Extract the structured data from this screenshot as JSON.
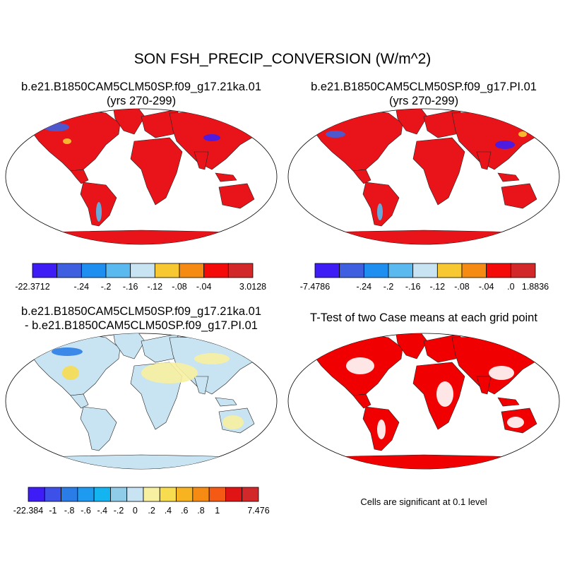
{
  "figure": {
    "title": "SON FSH_PRECIP_CONVERSION (W/m^2)",
    "significance_note": "Cells are significant at 0.1 level"
  },
  "panels": [
    {
      "id": "case1",
      "title_lines": [
        "b.e21.B1850CAM5CLM50SP.f09_g17.21ka.01",
        "(yrs 270-299)"
      ],
      "dominant_color": "#e8141a",
      "colorbar": {
        "labels": [
          "-22.3712",
          "-.24",
          "-.2",
          "-.16",
          "-.12",
          "-.08",
          "-.04",
          "3.0128"
        ],
        "colors": [
          "#3d1cf5",
          "#3d5fe0",
          "#1e8ef0",
          "#5ab9ee",
          "#c8e4f2",
          "#f7c832",
          "#f68b14",
          "#f50a0a",
          "#d2282a"
        ]
      }
    },
    {
      "id": "case2",
      "title_lines": [
        "b.e21.B1850CAM5CLM50SP.f09_g17.PI.01",
        "(yrs 270-299)"
      ],
      "dominant_color": "#e8141a",
      "colorbar": {
        "labels": [
          "-7.4786",
          "-.24",
          "-.2",
          "-.16",
          "-.12",
          "-.08",
          "-.04",
          ".0",
          "1.8836"
        ],
        "colors": [
          "#3d1cf5",
          "#3d5fe0",
          "#1e8ef0",
          "#5ab9ee",
          "#c8e4f2",
          "#f7c832",
          "#f68b14",
          "#f50a0a",
          "#d2282a"
        ]
      }
    },
    {
      "id": "difference",
      "title_lines": [
        "b.e21.B1850CAM5CLM50SP.f09_g17.21ka.01",
        "- b.e21.B1850CAM5CLM50SP.f09_g17.PI.01"
      ],
      "dominant_color": "#c8e4f2",
      "colorbar": {
        "labels": [
          "-22.384",
          "-1",
          "-.8",
          "-.6",
          "-.4",
          "-.2",
          "0",
          ".2",
          ".4",
          ".6",
          ".8",
          "1",
          "7.476"
        ],
        "colors": [
          "#3d1cf5",
          "#3d50e8",
          "#2a7de6",
          "#1e9af0",
          "#14b4f0",
          "#8fcce8",
          "#c8e4f2",
          "#f7f0a0",
          "#f7dc50",
          "#f7b420",
          "#f68b14",
          "#f55a14",
          "#e01414",
          "#d2282a"
        ]
      }
    },
    {
      "id": "ttest",
      "title_lines": [
        "T-Test of two Case means at each grid point"
      ],
      "dominant_color": "#f00000"
    }
  ]
}
